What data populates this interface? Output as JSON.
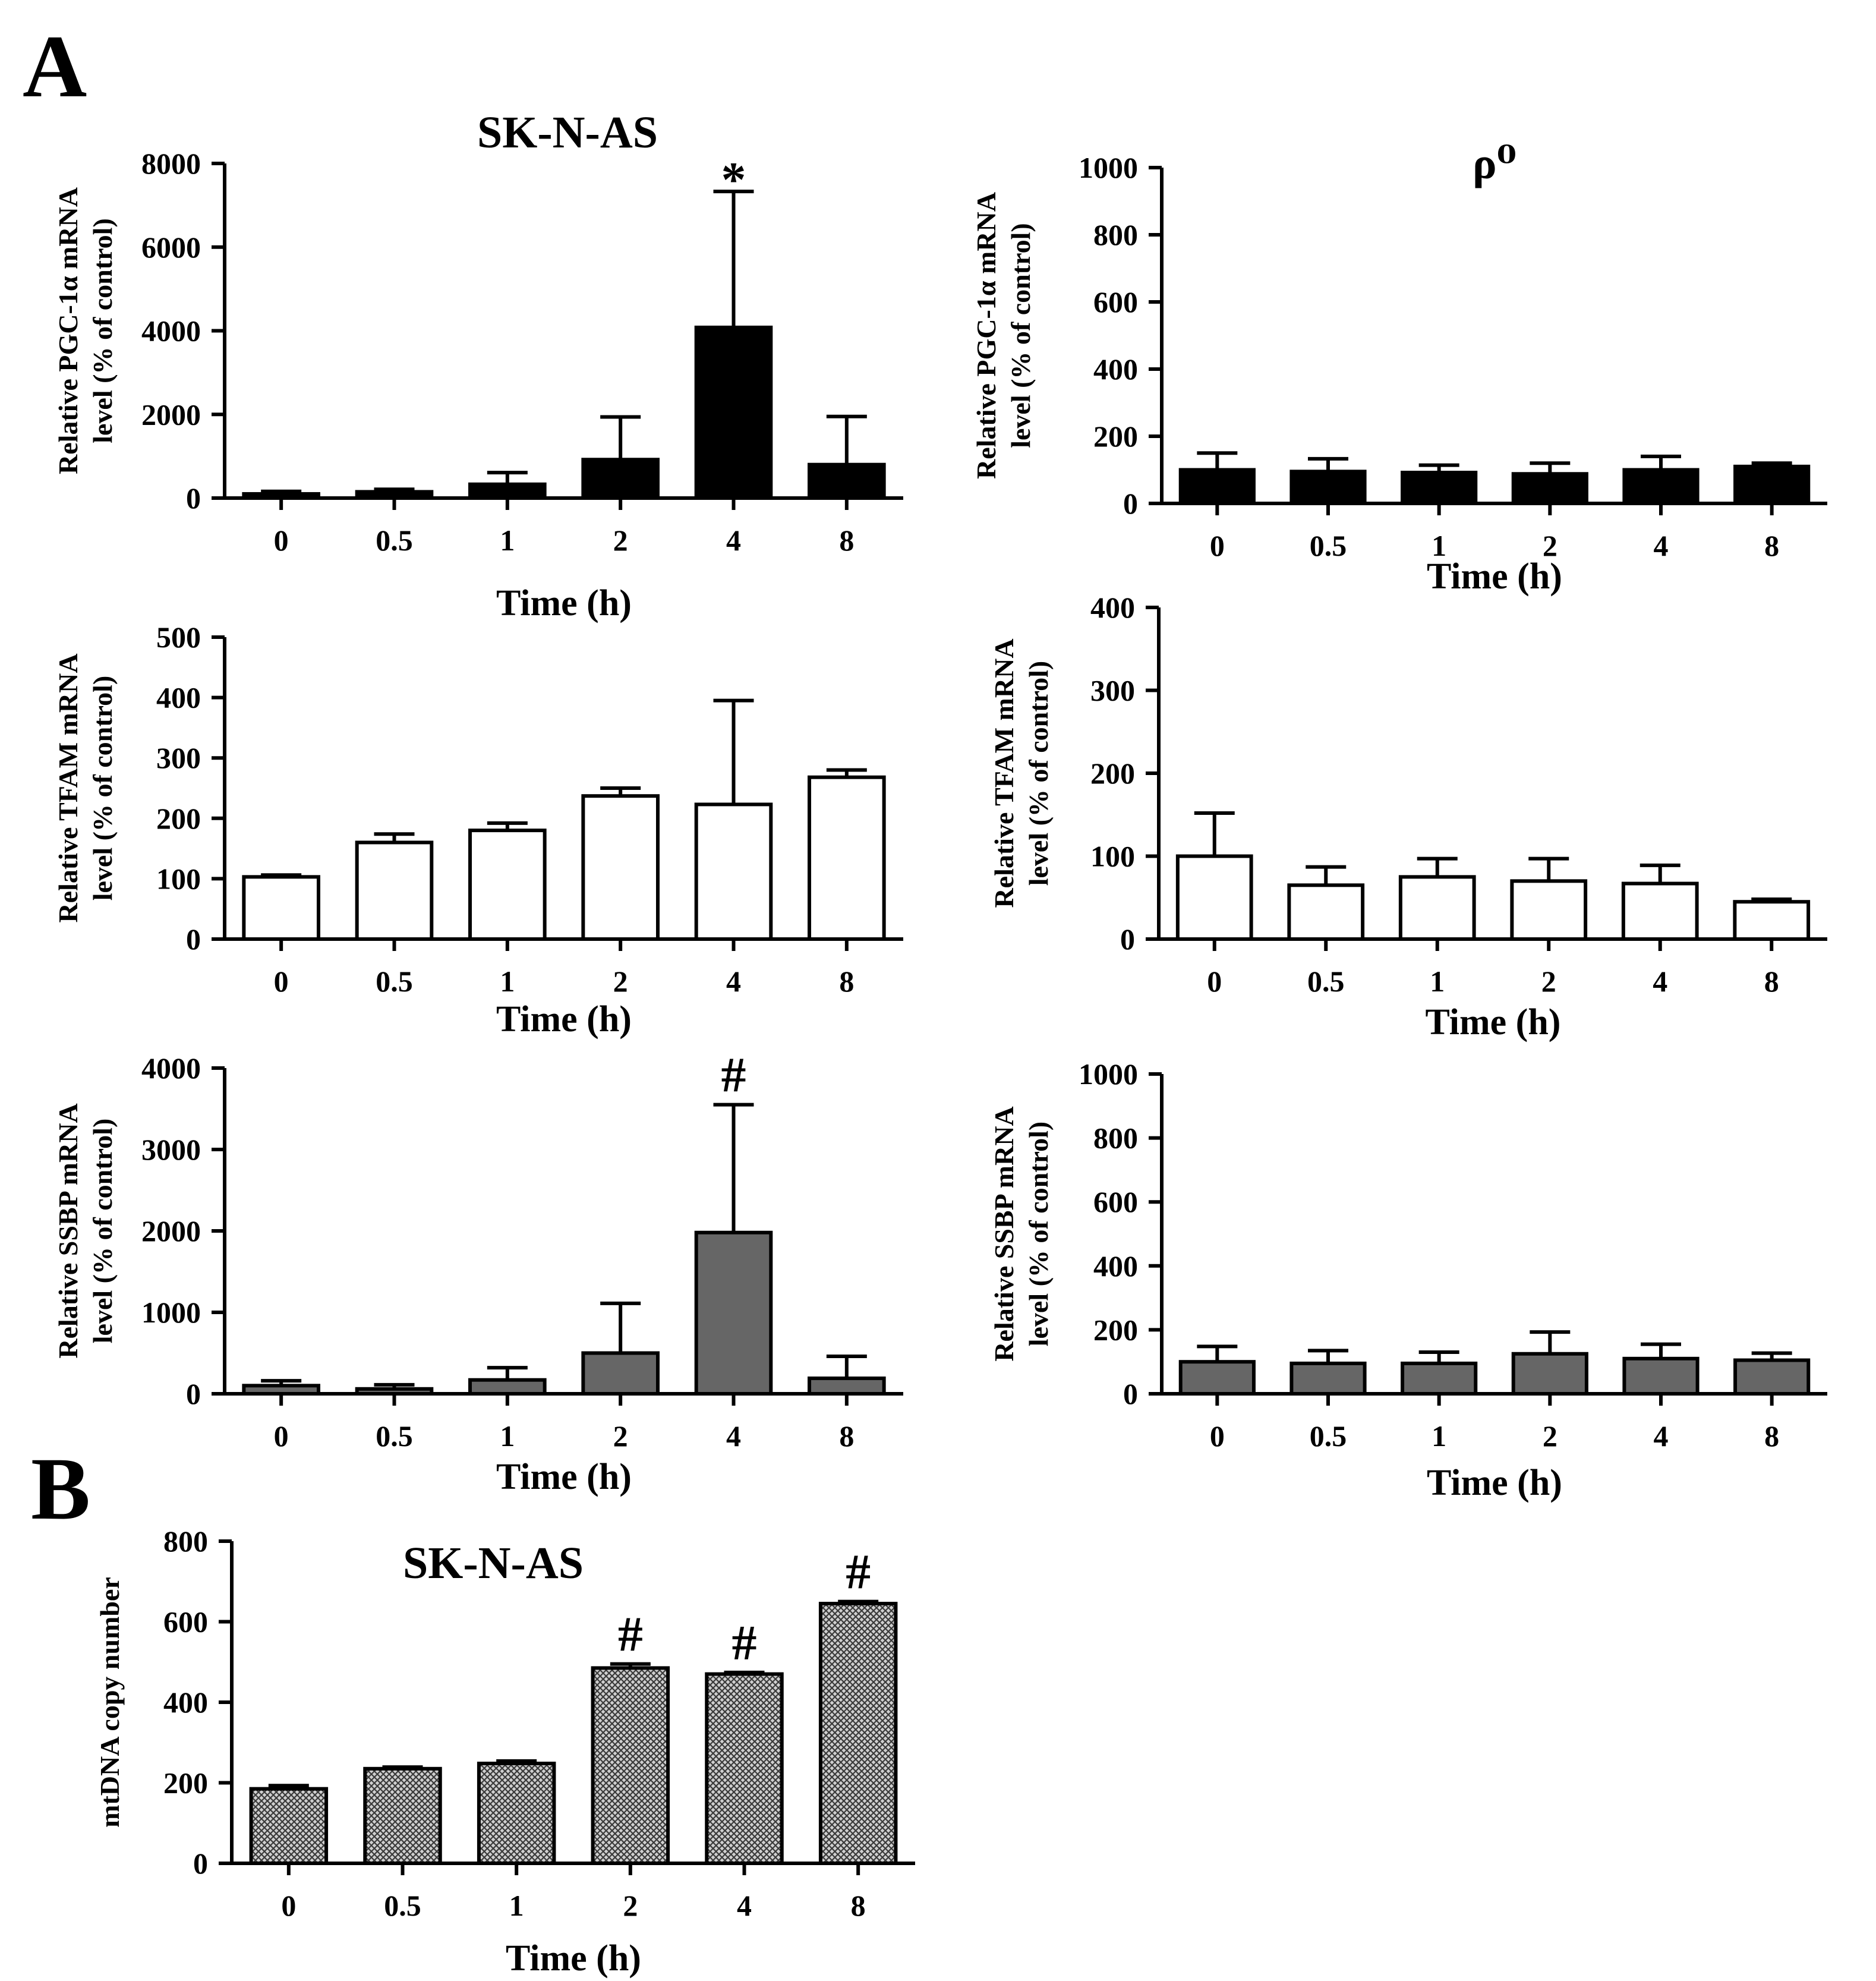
{
  "panels": {
    "A": "A",
    "B": "B"
  },
  "colors": {
    "solid": "#000000",
    "open": "#ffffff",
    "gray": "#666666",
    "hatch": "#9a9a9a"
  },
  "chart_data": [
    {
      "id": "pgc-skn",
      "type": "bar",
      "title": "SK-N-AS",
      "ylabel_lines": [
        "Relative PGC-1α mRNA",
        "level (% of control)"
      ],
      "xlabel": "Time (h)",
      "categories": [
        "0",
        "0.5",
        "1",
        "2",
        "4",
        "8"
      ],
      "values": [
        100,
        150,
        330,
        920,
        4080,
        800
      ],
      "errors": [
        60,
        60,
        280,
        1020,
        3250,
        1150
      ],
      "yticks": [
        0,
        2000,
        4000,
        6000,
        8000
      ],
      "ylim": [
        0,
        8000
      ],
      "fill": "solid",
      "marks": [
        {
          "index": 4,
          "symbol": "*"
        }
      ]
    },
    {
      "id": "pgc-rho",
      "type": "bar",
      "title": "ρ⁰",
      "ylabel_lines": [
        "Relative PGC-1α mRNA",
        "level (% of control)"
      ],
      "xlabel": "Time (h)",
      "categories": [
        "0",
        "0.5",
        "1",
        "2",
        "4",
        "8"
      ],
      "values": [
        100,
        95,
        92,
        88,
        100,
        110
      ],
      "errors": [
        50,
        38,
        22,
        32,
        40,
        10
      ],
      "yticks": [
        0,
        200,
        400,
        600,
        800,
        1000
      ],
      "ylim": [
        0,
        1000
      ],
      "fill": "solid",
      "marks": []
    },
    {
      "id": "tfam-skn",
      "type": "bar",
      "title": "",
      "ylabel_lines": [
        "Relative TFAM mRNA",
        "level (% of control)"
      ],
      "xlabel": "Time (h)",
      "categories": [
        "0",
        "0.5",
        "1",
        "2",
        "4",
        "8"
      ],
      "values": [
        103,
        160,
        180,
        237,
        223,
        268
      ],
      "errors": [
        3,
        14,
        12,
        13,
        172,
        12
      ],
      "yticks": [
        0,
        100,
        200,
        300,
        400,
        500
      ],
      "ylim": [
        0,
        500
      ],
      "fill": "open",
      "marks": []
    },
    {
      "id": "tfam-rho",
      "type": "bar",
      "title": "",
      "ylabel_lines": [
        "Relative TFAM mRNA",
        "level (% of control)"
      ],
      "xlabel": "Time (h)",
      "categories": [
        "0",
        "0.5",
        "1",
        "2",
        "4",
        "8"
      ],
      "values": [
        100,
        65,
        75,
        70,
        67,
        45
      ],
      "errors": [
        52,
        22,
        22,
        27,
        22,
        3
      ],
      "yticks": [
        0,
        100,
        200,
        300,
        400
      ],
      "ylim": [
        0,
        400
      ],
      "fill": "open",
      "marks": []
    },
    {
      "id": "ssbp-skn",
      "type": "bar",
      "title": "",
      "ylabel_lines": [
        "Relative SSBP mRNA",
        "level (% of control)"
      ],
      "xlabel": "Time (h)",
      "categories": [
        "0",
        "0.5",
        "1",
        "2",
        "4",
        "8"
      ],
      "values": [
        100,
        60,
        170,
        500,
        1980,
        190
      ],
      "errors": [
        60,
        50,
        150,
        610,
        1570,
        270
      ],
      "yticks": [
        0,
        1000,
        2000,
        3000,
        4000
      ],
      "ylim": [
        0,
        4000
      ],
      "fill": "gray",
      "marks": [
        {
          "index": 4,
          "symbol": "#"
        }
      ]
    },
    {
      "id": "ssbp-rho",
      "type": "bar",
      "title": "",
      "ylabel_lines": [
        "Relative SSBP mRNA",
        "level (% of control)"
      ],
      "xlabel": "Time (h)",
      "categories": [
        "0",
        "0.5",
        "1",
        "2",
        "4",
        "8"
      ],
      "values": [
        100,
        95,
        95,
        125,
        110,
        105
      ],
      "errors": [
        48,
        40,
        35,
        68,
        45,
        22
      ],
      "yticks": [
        0,
        200,
        400,
        600,
        800,
        1000
      ],
      "ylim": [
        0,
        1000
      ],
      "fill": "gray",
      "marks": []
    },
    {
      "id": "mtdna-skn",
      "type": "bar",
      "title": "SK-N-AS",
      "ylabel_lines": [
        "mtDNA copy number"
      ],
      "xlabel": "Time (h)",
      "categories": [
        "0",
        "0.5",
        "1",
        "2",
        "4",
        "8"
      ],
      "values": [
        185,
        235,
        248,
        485,
        470,
        645
      ],
      "errors": [
        8,
        4,
        6,
        10,
        4,
        5
      ],
      "yticks": [
        0,
        200,
        400,
        600,
        800
      ],
      "ylim": [
        0,
        800
      ],
      "fill": "hatch",
      "marks": [
        {
          "index": 3,
          "symbol": "#"
        },
        {
          "index": 4,
          "symbol": "#"
        },
        {
          "index": 5,
          "symbol": "#"
        }
      ]
    }
  ]
}
